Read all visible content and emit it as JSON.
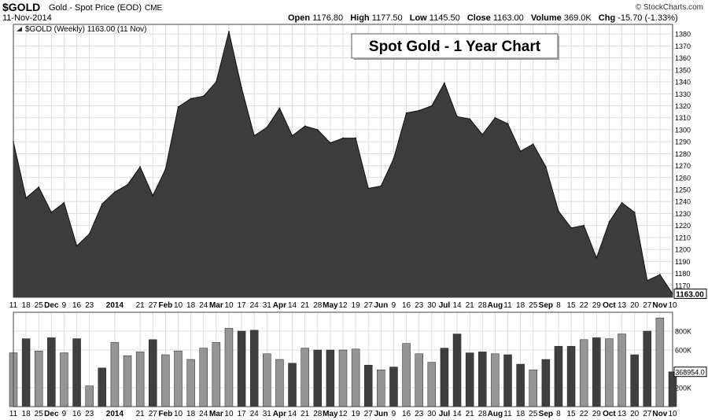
{
  "header": {
    "symbol": "$GOLD",
    "subtitle": "Gold - Spot Price (EOD)",
    "exchange": "CME",
    "brand": "© StockCharts.com",
    "date": "11-Nov-2014",
    "open_label": "Open",
    "open": "1176.80",
    "high_label": "High",
    "high": "1177.50",
    "low_label": "Low",
    "low": "1145.50",
    "close_label": "Close",
    "close": "1163.00",
    "volume_label": "Volume",
    "volume": "369.0K",
    "chg_label": "Chg",
    "chg": "-15.70 (-1.33%)"
  },
  "colors": {
    "area_fill": "#3c3c3c",
    "bar_light": "#959595",
    "bar_dark": "#3f3f3f",
    "grid": "#dcdcdc",
    "frame": "#444444"
  },
  "chart_data": [
    {
      "type": "area",
      "legend": "$GOLD (Weekly) 1163.00 (11 Nov)",
      "title_box": "Spot Gold - 1 Year Chart",
      "last_value_label": "1163.00",
      "ylim": [
        1160,
        1388
      ],
      "y_ticks": [
        1170,
        1180,
        1190,
        1200,
        1210,
        1220,
        1230,
        1240,
        1250,
        1260,
        1270,
        1280,
        1290,
        1300,
        1310,
        1320,
        1330,
        1340,
        1350,
        1360,
        1370,
        1380
      ],
      "x_tick_labels": [
        {
          "i": 0,
          "label": "11",
          "bold": false
        },
        {
          "i": 1,
          "label": "18",
          "bold": false
        },
        {
          "i": 2,
          "label": "25",
          "bold": false
        },
        {
          "i": 3,
          "label": "Dec",
          "bold": true
        },
        {
          "i": 4,
          "label": "9",
          "bold": false
        },
        {
          "i": 5,
          "label": "16",
          "bold": false
        },
        {
          "i": 6,
          "label": "23",
          "bold": false
        },
        {
          "i": 8,
          "label": "2014",
          "bold": true
        },
        {
          "i": 10,
          "label": "21",
          "bold": false
        },
        {
          "i": 11,
          "label": "27",
          "bold": false
        },
        {
          "i": 12,
          "label": "Feb",
          "bold": true
        },
        {
          "i": 13,
          "label": "10",
          "bold": false
        },
        {
          "i": 14,
          "label": "18",
          "bold": false
        },
        {
          "i": 15,
          "label": "24",
          "bold": false
        },
        {
          "i": 16,
          "label": "Mar",
          "bold": true
        },
        {
          "i": 17,
          "label": "10",
          "bold": false
        },
        {
          "i": 18,
          "label": "17",
          "bold": false
        },
        {
          "i": 19,
          "label": "24",
          "bold": false
        },
        {
          "i": 20,
          "label": "31",
          "bold": false
        },
        {
          "i": 21,
          "label": "Apr",
          "bold": true
        },
        {
          "i": 22,
          "label": "14",
          "bold": false
        },
        {
          "i": 23,
          "label": "21",
          "bold": false
        },
        {
          "i": 24,
          "label": "28",
          "bold": false
        },
        {
          "i": 25,
          "label": "May",
          "bold": true
        },
        {
          "i": 26,
          "label": "12",
          "bold": false
        },
        {
          "i": 27,
          "label": "19",
          "bold": false
        },
        {
          "i": 28,
          "label": "27",
          "bold": false
        },
        {
          "i": 29,
          "label": "Jun",
          "bold": true
        },
        {
          "i": 30,
          "label": "9",
          "bold": false
        },
        {
          "i": 31,
          "label": "16",
          "bold": false
        },
        {
          "i": 32,
          "label": "23",
          "bold": false
        },
        {
          "i": 33,
          "label": "30",
          "bold": false
        },
        {
          "i": 34,
          "label": "Jul",
          "bold": true
        },
        {
          "i": 35,
          "label": "14",
          "bold": false
        },
        {
          "i": 36,
          "label": "21",
          "bold": false
        },
        {
          "i": 37,
          "label": "28",
          "bold": false
        },
        {
          "i": 38,
          "label": "Aug",
          "bold": true
        },
        {
          "i": 39,
          "label": "11",
          "bold": false
        },
        {
          "i": 40,
          "label": "18",
          "bold": false
        },
        {
          "i": 41,
          "label": "25",
          "bold": false
        },
        {
          "i": 42,
          "label": "Sep",
          "bold": true
        },
        {
          "i": 43,
          "label": "8",
          "bold": false
        },
        {
          "i": 44,
          "label": "15",
          "bold": false
        },
        {
          "i": 45,
          "label": "22",
          "bold": false
        },
        {
          "i": 46,
          "label": "29",
          "bold": false
        },
        {
          "i": 47,
          "label": "Oct",
          "bold": true
        },
        {
          "i": 48,
          "label": "13",
          "bold": false
        },
        {
          "i": 49,
          "label": "20",
          "bold": false
        },
        {
          "i": 50,
          "label": "27",
          "bold": false
        },
        {
          "i": 51,
          "label": "Nov",
          "bold": true
        },
        {
          "i": 52,
          "label": "10",
          "bold": false
        }
      ],
      "values": [
        1290,
        1243,
        1252,
        1231,
        1239,
        1203,
        1213,
        1238,
        1248,
        1254,
        1269,
        1245,
        1267,
        1319,
        1326,
        1328,
        1340,
        1382,
        1335,
        1295,
        1302,
        1318,
        1295,
        1303,
        1300,
        1289,
        1293,
        1293,
        1251,
        1253,
        1276,
        1314,
        1316,
        1320,
        1339,
        1311,
        1309,
        1296,
        1310,
        1305,
        1282,
        1288,
        1269,
        1232,
        1218,
        1220,
        1193,
        1223,
        1239,
        1231,
        1174,
        1179,
        1163
      ],
      "grid": true
    },
    {
      "type": "bar",
      "ylim": [
        0,
        1000000
      ],
      "y_ticks": [
        {
          "value": 200000,
          "label": "200K"
        },
        {
          "value": 600000,
          "label": "600K"
        },
        {
          "value": 800000,
          "label": "800K"
        }
      ],
      "last_value_label": "368954.0",
      "values": [
        570000,
        720000,
        590000,
        730000,
        570000,
        720000,
        220000,
        410000,
        680000,
        540000,
        580000,
        710000,
        550000,
        590000,
        500000,
        620000,
        680000,
        830000,
        800000,
        810000,
        560000,
        500000,
        460000,
        620000,
        600000,
        600000,
        600000,
        610000,
        440000,
        390000,
        420000,
        670000,
        560000,
        470000,
        620000,
        770000,
        570000,
        580000,
        560000,
        550000,
        450000,
        390000,
        500000,
        640000,
        640000,
        710000,
        730000,
        720000,
        770000,
        550000,
        800000,
        940000,
        369000
      ],
      "up": [
        false,
        true,
        false,
        true,
        false,
        true,
        false,
        true,
        false,
        false,
        false,
        true,
        false,
        false,
        false,
        false,
        false,
        false,
        true,
        true,
        false,
        false,
        true,
        false,
        true,
        true,
        false,
        false,
        true,
        false,
        true,
        false,
        false,
        false,
        true,
        true,
        true,
        true,
        false,
        true,
        true,
        false,
        true,
        true,
        true,
        false,
        true,
        false,
        false,
        true,
        true,
        false,
        true
      ],
      "grid": true
    }
  ]
}
